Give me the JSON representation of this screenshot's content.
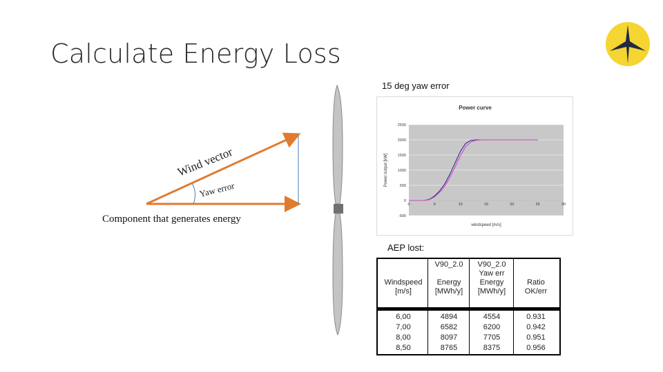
{
  "slide": {
    "title": "Calculate Energy Loss",
    "chart_caption": "15 deg yaw error",
    "aep_caption": "AEP lost:",
    "component_caption": "Component that generates energy",
    "wind_vector_label": "Wind vector",
    "yaw_error_label": "Yaw error",
    "logo_icon": "star-logo-icon",
    "logo_color": "#f5d531"
  },
  "chart_data": {
    "type": "line",
    "title": "Power curve",
    "xlabel": "windspeed [m/s]",
    "ylabel": "Power output [kW]",
    "xlim": [
      0,
      30
    ],
    "ylim": [
      -500,
      2500
    ],
    "x_ticks": [
      "0",
      "5",
      "10",
      "15",
      "20",
      "25",
      "30"
    ],
    "y_ticks": [
      "2500",
      "2000",
      "1500",
      "1000",
      "500",
      "0",
      "-500"
    ],
    "grid": true,
    "series": [
      {
        "color": "#3a2a8a",
        "x": [
          0,
          3,
          4,
          5,
          6,
          7,
          8,
          9,
          10,
          11,
          12,
          13,
          14,
          25
        ],
        "y": [
          0,
          0,
          40,
          150,
          320,
          560,
          880,
          1250,
          1620,
          1880,
          1980,
          2000,
          2000,
          2000
        ]
      },
      {
        "color": "#d048c8",
        "x": [
          0,
          3,
          4,
          5,
          6,
          7,
          8,
          9,
          10,
          11,
          12,
          13,
          14,
          15,
          25
        ],
        "y": [
          0,
          0,
          30,
          120,
          270,
          480,
          770,
          1120,
          1480,
          1770,
          1930,
          1985,
          2000,
          2000,
          2000
        ]
      }
    ]
  },
  "aep_table": {
    "col_headers": [
      [
        "",
        "Windspeed",
        "[m/s]"
      ],
      [
        "V90_2.0",
        "Energy",
        "[MWh/y]"
      ],
      [
        "V90_2.0",
        "Yaw err",
        "Energy",
        "[MWh/y]"
      ],
      [
        "",
        "Ratio",
        "OK/err"
      ]
    ],
    "rows": [
      [
        "6,00",
        "4894",
        "4554",
        "0.931"
      ],
      [
        "7,00",
        "6582",
        "6200",
        "0.942"
      ],
      [
        "8,00",
        "8097",
        "7705",
        "0.951"
      ],
      [
        "8,50",
        "8765",
        "8375",
        "0.956"
      ]
    ]
  }
}
